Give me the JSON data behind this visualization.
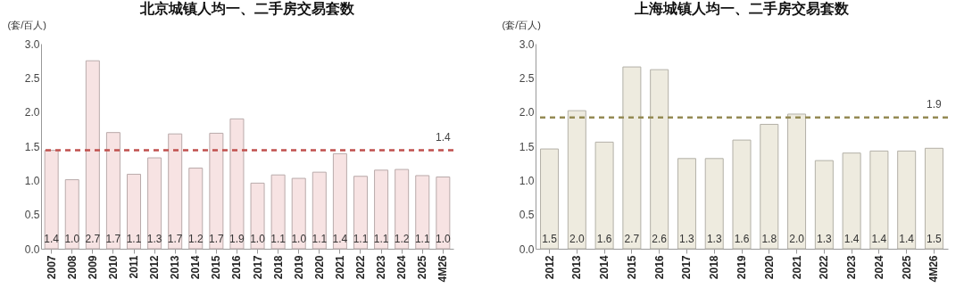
{
  "chart_data": [
    {
      "type": "bar",
      "title": "北京城镇人均一、二手房交易套数",
      "ylabel": "(套/百人)",
      "categories": [
        "2007",
        "2008",
        "2009",
        "2010",
        "2011",
        "2012",
        "2013",
        "2014",
        "2015",
        "2016",
        "2017",
        "2018",
        "2019",
        "2020",
        "2021",
        "2022",
        "2023",
        "2024",
        "2025",
        "4M26"
      ],
      "series": [
        {
          "color": "#f7e3e3",
          "values": [
            1.44,
            1.01,
            2.75,
            1.7,
            1.09,
            1.33,
            1.68,
            1.18,
            1.69,
            1.9,
            0.96,
            1.08,
            1.03,
            1.12,
            1.39,
            1.06,
            1.15,
            1.16,
            1.07,
            1.05
          ],
          "value_labels": [
            "1.4",
            "1.0",
            "2.7",
            "1.7",
            "1.1",
            "1.3",
            "1.7",
            "1.2",
            "1.7",
            "1.9",
            "1.0",
            "1.1",
            "1.0",
            "1.1",
            "1.4",
            "1.1",
            "1.1",
            "1.2",
            "1.1",
            "1.0"
          ]
        }
      ],
      "ylim": [
        0,
        3
      ],
      "yticks": [
        {
          "value": 0,
          "label": "0.0"
        },
        0.5,
        {
          "value": 1,
          "label": "1.0"
        },
        1.5,
        {
          "value": 2,
          "label": "2.0"
        },
        2.5,
        {
          "value": 3,
          "label": "3.0"
        }
      ],
      "grid": false,
      "ref_lines": [
        {
          "axis": "y",
          "value": 1.44,
          "label": "1.4",
          "color": "#c0504d",
          "line_style": "dashed"
        }
      ]
    },
    {
      "type": "bar",
      "title": "上海城镇人均一、二手房交易套数",
      "ylabel": "(套/百人)",
      "categories": [
        "2012",
        "2013",
        "2014",
        "2015",
        "2016",
        "2017",
        "2018",
        "2019",
        "2020",
        "2021",
        "2022",
        "2023",
        "2024",
        "2025",
        "4M26"
      ],
      "series": [
        {
          "color": "#eeebdf",
          "values": [
            1.46,
            2.02,
            1.56,
            2.66,
            2.62,
            1.32,
            1.32,
            1.59,
            1.82,
            1.97,
            1.29,
            1.4,
            1.43,
            1.43,
            1.47
          ],
          "value_labels": [
            "1.5",
            "2.0",
            "1.6",
            "2.7",
            "2.6",
            "1.3",
            "1.3",
            "1.6",
            "1.8",
            "2.0",
            "1.3",
            "1.4",
            "1.4",
            "1.4",
            "1.5"
          ]
        }
      ],
      "ylim": [
        0,
        3
      ],
      "yticks": [
        {
          "value": 0,
          "label": "0.0"
        },
        0.5,
        {
          "value": 1,
          "label": "1.0"
        },
        1.5,
        {
          "value": 2,
          "label": "2.0"
        },
        2.5,
        {
          "value": 3,
          "label": "3.0"
        }
      ],
      "grid": false,
      "ref_lines": [
        {
          "axis": "y",
          "value": 1.92,
          "label": "1.9",
          "color": "#948a54",
          "line_style": "dashed"
        }
      ]
    }
  ]
}
